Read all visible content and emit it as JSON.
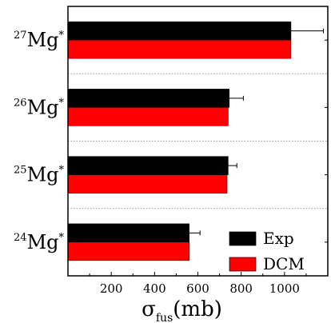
{
  "chart_data": {
    "type": "bar",
    "orientation": "horizontal",
    "categories": [
      {
        "mass": "24",
        "element": "Mg",
        "star": "*"
      },
      {
        "mass": "25",
        "element": "Mg",
        "star": "*"
      },
      {
        "mass": "26",
        "element": "Mg",
        "star": "*"
      },
      {
        "mass": "27",
        "element": "Mg",
        "star": "*"
      }
    ],
    "series": [
      {
        "name": "Exp",
        "color": "#000000",
        "values": [
          560,
          740,
          745,
          1030
        ],
        "errors": [
          50,
          40,
          65,
          150
        ]
      },
      {
        "name": "DCM",
        "color": "#ff0000",
        "values": [
          560,
          735,
          740,
          1030
        ]
      }
    ],
    "xlabel": {
      "main": "σ",
      "sub": "fus",
      "unit": "(mb)"
    },
    "xlim": [
      0,
      1200
    ],
    "xticks": [
      200,
      400,
      600,
      800,
      1000
    ],
    "grid": {
      "horizontal_separators": true,
      "style": "dotted"
    },
    "legend_position": "bottom-right"
  }
}
